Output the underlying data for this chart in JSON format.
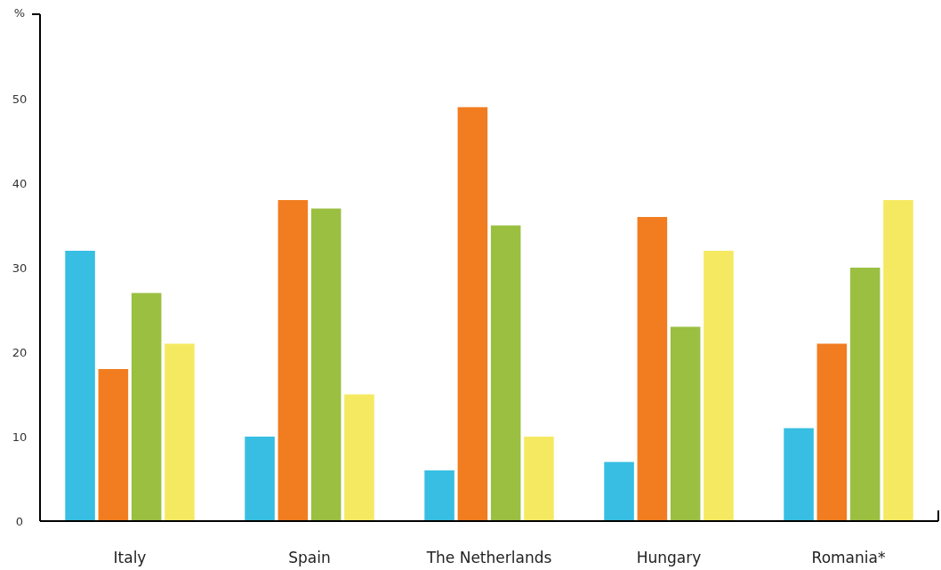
{
  "chart_data": {
    "type": "bar",
    "ylabel": "%",
    "categories": [
      "Italy",
      "Spain",
      "The Netherlands",
      "Hungary",
      "Romania*"
    ],
    "series": [
      {
        "color": "#38bee2",
        "values": [
          32,
          10,
          6,
          7,
          11
        ]
      },
      {
        "color": "#f17d20",
        "values": [
          18,
          38,
          49,
          36,
          21
        ]
      },
      {
        "color": "#9abf41",
        "values": [
          27,
          37,
          35,
          23,
          30
        ]
      },
      {
        "color": "#f6e962",
        "values": [
          21,
          15,
          10,
          32,
          38
        ]
      }
    ],
    "ylim": [
      0,
      60
    ],
    "yticks": [
      0,
      10,
      20,
      30,
      40,
      50,
      {
        "value": 60,
        "label": null
      }
    ],
    "grid": false
  }
}
